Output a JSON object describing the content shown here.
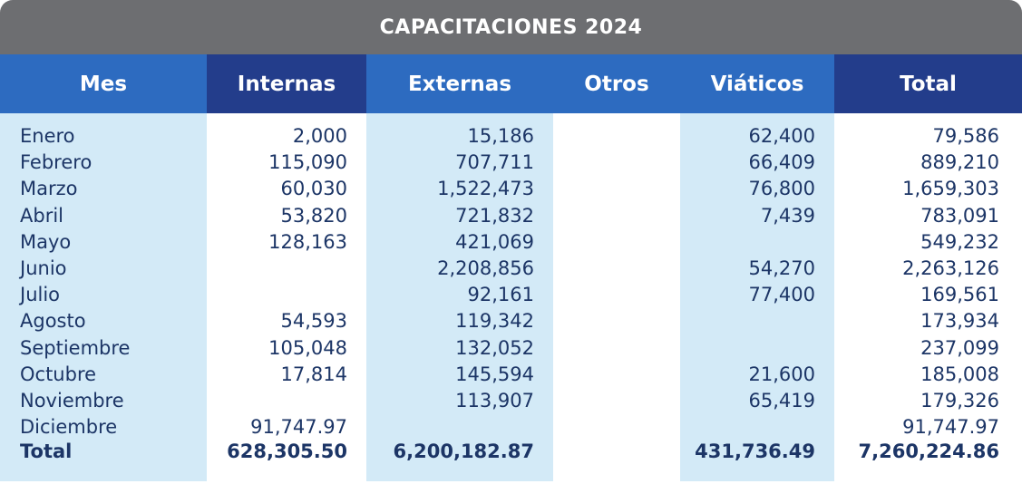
{
  "title": "CAPACITACIONES 2024",
  "table": {
    "header": [
      "Mes",
      "Internas",
      "Externas",
      "Otros",
      "Viáticos",
      "Total"
    ],
    "rows": [
      [
        "Enero",
        "2,000",
        "15,186",
        null,
        "62,400",
        "79,586"
      ],
      [
        "Febrero",
        "115,090",
        "707,711",
        null,
        "66,409",
        "889,210"
      ],
      [
        "Marzo",
        "60,030",
        "1,522,473",
        null,
        "76,800",
        "1,659,303"
      ],
      [
        "Abril",
        "53,820",
        "721,832",
        null,
        "7,439",
        "783,091"
      ],
      [
        "Mayo",
        "128,163",
        "421,069",
        null,
        null,
        "549,232"
      ],
      [
        "Junio",
        null,
        "2,208,856",
        null,
        "54,270",
        "2,263,126"
      ],
      [
        "Julio",
        null,
        "92,161",
        null,
        "77,400",
        "169,561"
      ],
      [
        "Agosto",
        "54,593",
        "119,342",
        null,
        null,
        "173,934"
      ],
      [
        "Septiembre",
        "105,048",
        "132,052",
        null,
        null,
        "237,099"
      ],
      [
        "Octubre",
        "17,814",
        "145,594",
        null,
        "21,600",
        "185,008"
      ],
      [
        "Noviembre",
        null,
        "113,907",
        null,
        "65,419",
        "179,326"
      ],
      [
        "Diciembre",
        "91,747.97",
        null,
        null,
        null,
        "91,747.97"
      ]
    ],
    "total": [
      "Total",
      "628,305.50",
      "6,200,182.87",
      null,
      "431,736.49",
      "7,260,224.86"
    ]
  }
}
